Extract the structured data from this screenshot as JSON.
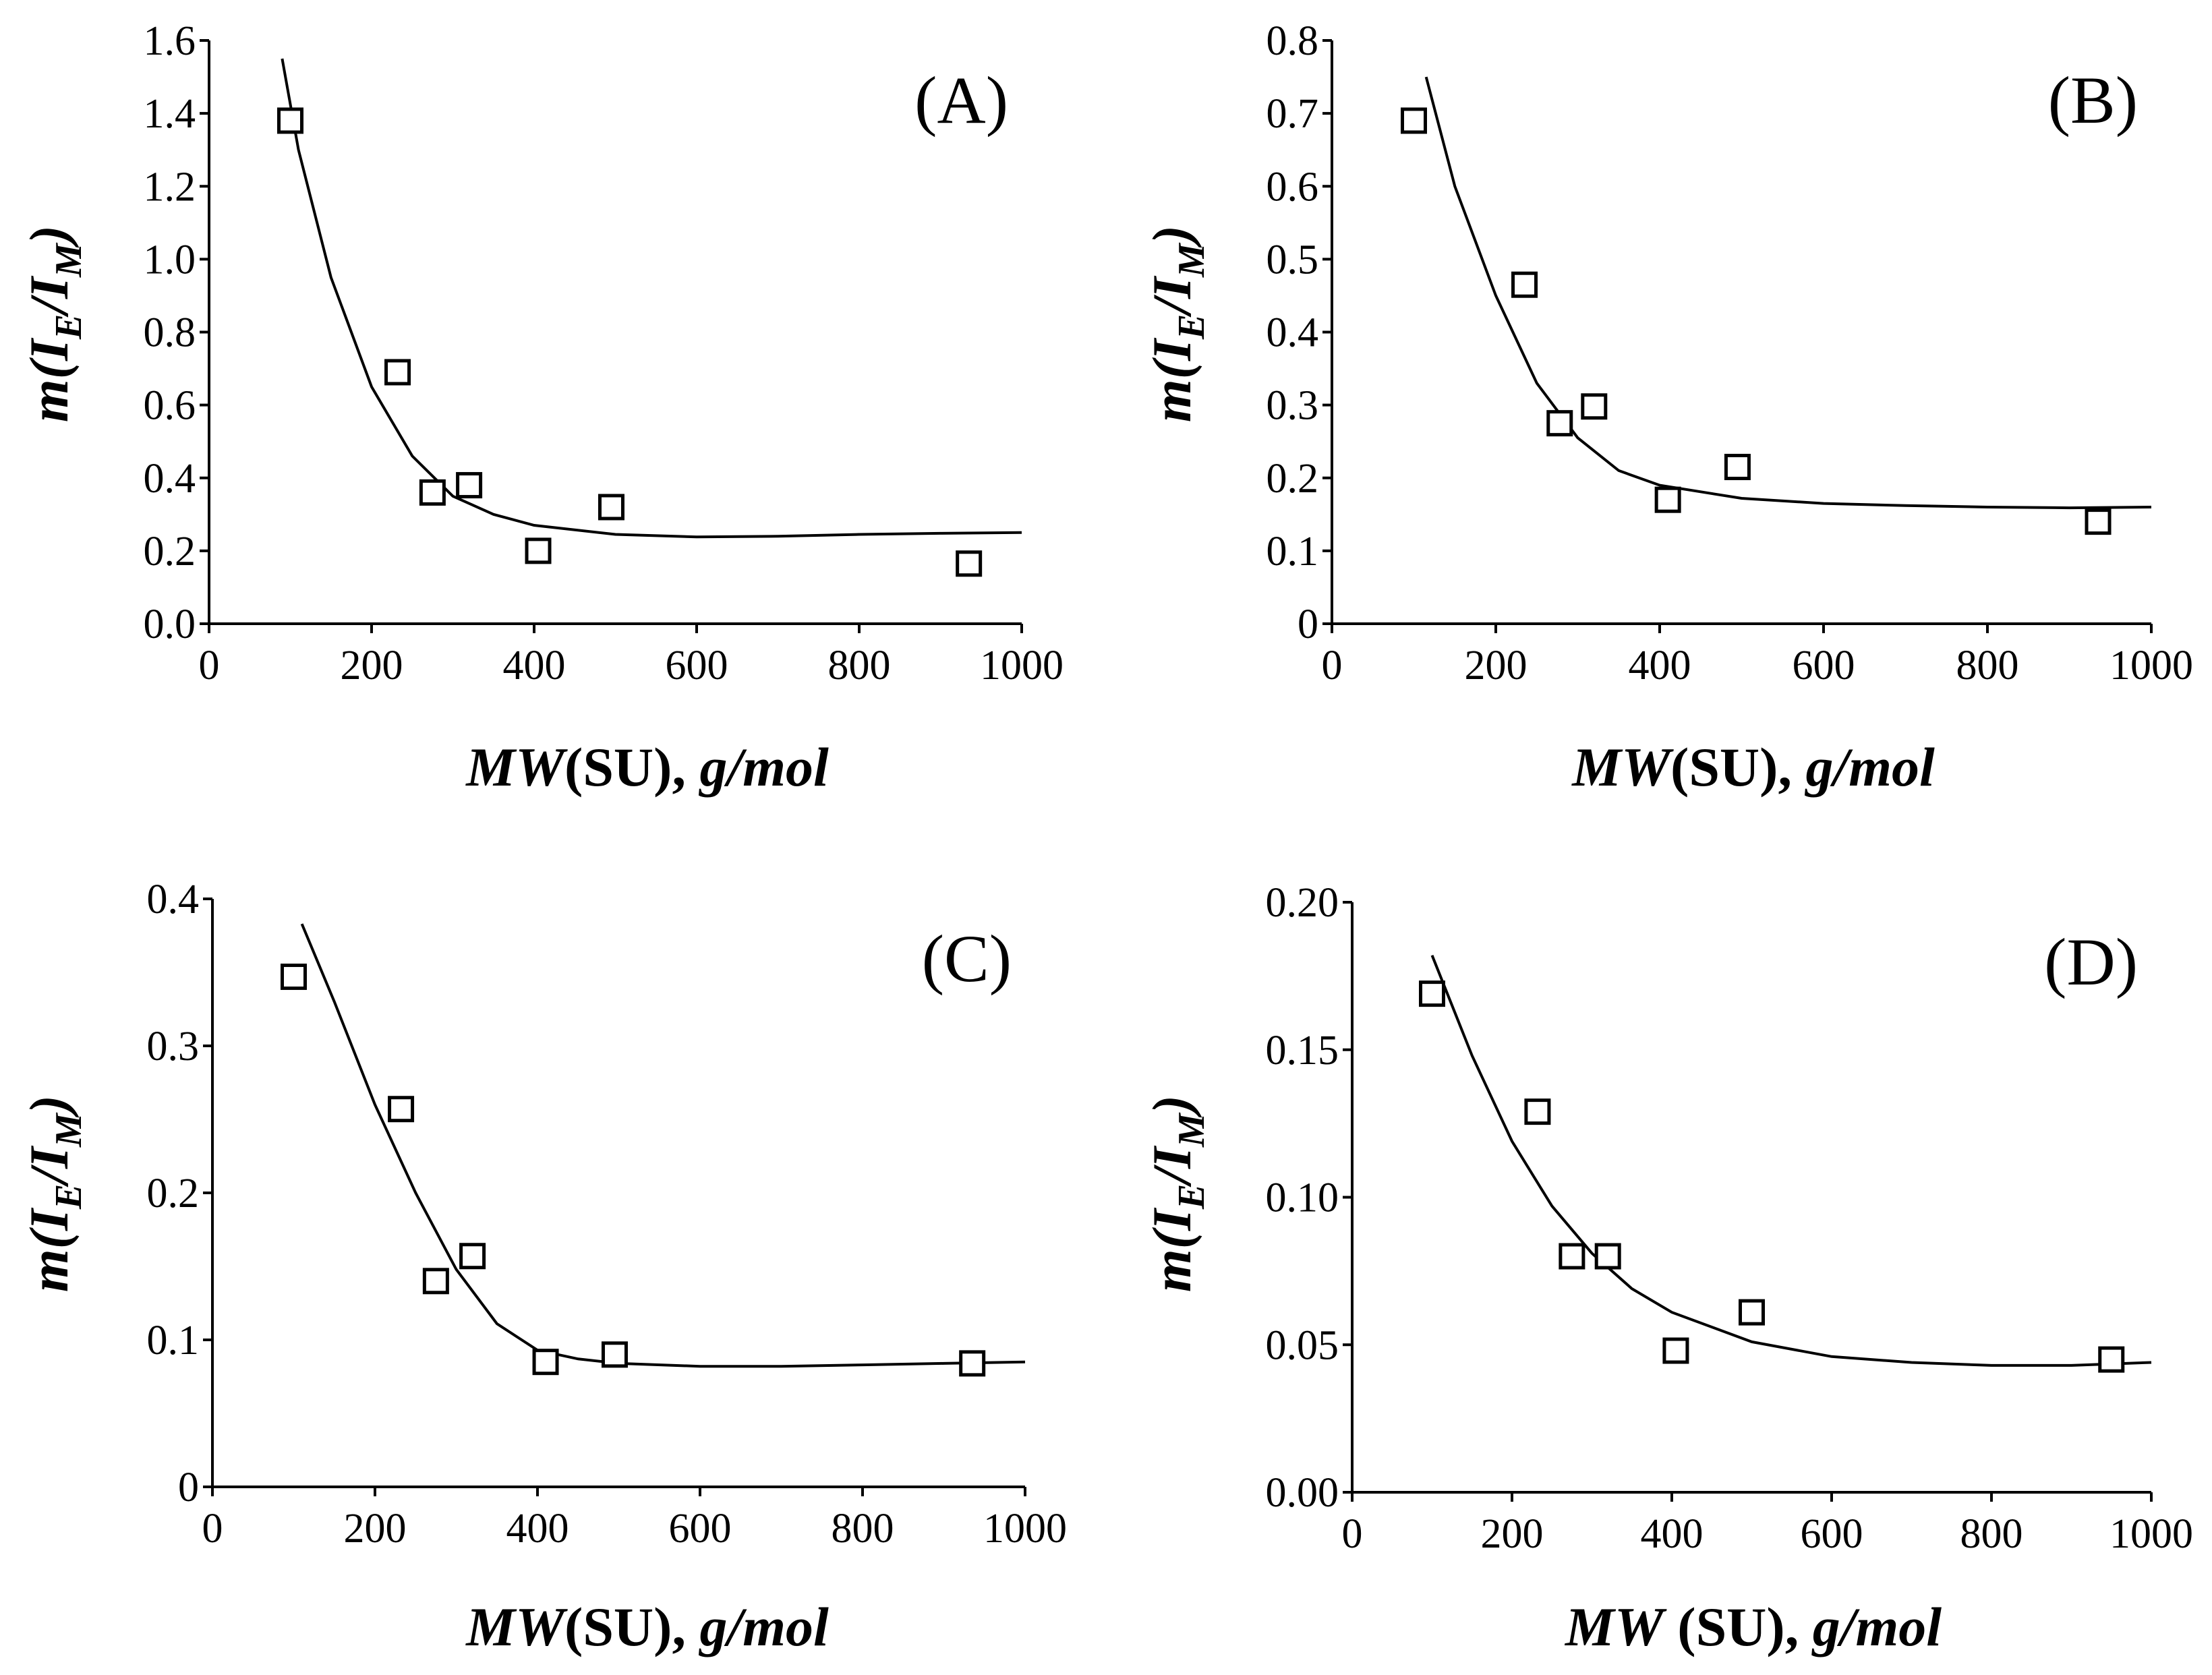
{
  "figure": {
    "background": "#ffffff",
    "ink": "#000000"
  },
  "chart_data": [
    {
      "type": "scatter",
      "panel_label": "(A)",
      "xlabel": {
        "italic": "MW",
        "normal": "(SU),",
        "italic2": "g/mol"
      },
      "ylabel": {
        "m": "m(I",
        "sub1": "E",
        "mid": "/I",
        "sub2": "M",
        "end": ")"
      },
      "xlim": [
        0,
        1000
      ],
      "ylim": [
        0,
        1.6
      ],
      "xticks": [
        "0",
        "200",
        "400",
        "600",
        "800",
        "1000"
      ],
      "yticks": [
        "0.0",
        "0.2",
        "0.4",
        "0.6",
        "0.8",
        "1.0",
        "1.2",
        "1.4",
        "1.6"
      ],
      "points": {
        "x": [
          100,
          232,
          275,
          320,
          405,
          495,
          935
        ],
        "y": [
          1.38,
          0.69,
          0.36,
          0.38,
          0.2,
          0.32,
          0.165
        ]
      },
      "fit_curve": {
        "x": [
          90,
          110,
          150,
          200,
          250,
          300,
          350,
          400,
          500,
          600,
          700,
          800,
          900,
          1000
        ],
        "y": [
          1.55,
          1.3,
          0.95,
          0.65,
          0.46,
          0.35,
          0.3,
          0.27,
          0.245,
          0.238,
          0.24,
          0.245,
          0.248,
          0.25
        ]
      },
      "legend": "none",
      "grid": false
    },
    {
      "type": "scatter",
      "panel_label": "(B)",
      "xlabel": {
        "italic": "MW",
        "normal": "(SU),",
        "italic2": "g/mol"
      },
      "ylabel": {
        "m": "m(I",
        "sub1": "E",
        "mid": "/I",
        "sub2": "M",
        "end": ")"
      },
      "xlim": [
        0,
        1000
      ],
      "ylim": [
        0,
        0.8
      ],
      "xticks": [
        "0",
        "200",
        "400",
        "600",
        "800",
        "1000"
      ],
      "yticks": [
        "0",
        "0.1",
        "0.2",
        "0.3",
        "0.4",
        "0.5",
        "0.6",
        "0.7",
        "0.8"
      ],
      "points": {
        "x": [
          100,
          235,
          278,
          320,
          410,
          495,
          935
        ],
        "y": [
          0.69,
          0.465,
          0.275,
          0.298,
          0.17,
          0.215,
          0.14
        ]
      },
      "fit_curve": {
        "x": [
          115,
          150,
          200,
          250,
          300,
          350,
          400,
          500,
          600,
          700,
          800,
          900,
          1000
        ],
        "y": [
          0.75,
          0.6,
          0.45,
          0.33,
          0.255,
          0.21,
          0.19,
          0.172,
          0.165,
          0.162,
          0.16,
          0.159,
          0.16
        ]
      },
      "legend": "none",
      "grid": false
    },
    {
      "type": "scatter",
      "panel_label": "(C)",
      "xlabel": {
        "italic": "MW",
        "normal": "(SU),",
        "italic2": "g/mol"
      },
      "ylabel": {
        "m": "m(I",
        "sub1": "E",
        "mid": "/I",
        "sub2": "M",
        "end": ")"
      },
      "xlim": [
        0,
        1000
      ],
      "ylim": [
        0,
        0.4
      ],
      "xticks": [
        "0",
        "200",
        "400",
        "600",
        "800",
        "1000"
      ],
      "yticks": [
        "0",
        "0.1",
        "0.2",
        "0.3",
        "0.4"
      ],
      "points": {
        "x": [
          100,
          232,
          275,
          320,
          410,
          495,
          935
        ],
        "y": [
          0.347,
          0.257,
          0.14,
          0.157,
          0.085,
          0.09,
          0.084
        ]
      },
      "fit_curve": {
        "x": [
          110,
          150,
          200,
          250,
          300,
          350,
          400,
          450,
          500,
          600,
          700,
          800,
          900,
          1000
        ],
        "y": [
          0.383,
          0.33,
          0.26,
          0.2,
          0.148,
          0.111,
          0.093,
          0.087,
          0.084,
          0.082,
          0.082,
          0.083,
          0.084,
          0.085
        ]
      },
      "legend": "none",
      "grid": false
    },
    {
      "type": "scatter",
      "panel_label": "(D)",
      "xlabel": {
        "italic": "MW",
        "normal": " (SU),",
        "italic2": "g/mol"
      },
      "ylabel": {
        "m": "m(I",
        "sub1": "E",
        "mid": "/I",
        "sub2": "M",
        "end": ")"
      },
      "xlim": [
        0,
        1000
      ],
      "ylim": [
        0,
        0.2
      ],
      "xticks": [
        "0",
        "200",
        "400",
        "600",
        "800",
        "1000"
      ],
      "yticks": [
        "0.00",
        "0.05",
        "0.10",
        "0.15",
        "0.20"
      ],
      "points": {
        "x": [
          100,
          232,
          275,
          320,
          405,
          500,
          950
        ],
        "y": [
          0.169,
          0.129,
          0.08,
          0.08,
          0.048,
          0.061,
          0.045
        ]
      },
      "fit_curve": {
        "x": [
          100,
          150,
          200,
          250,
          300,
          350,
          400,
          500,
          600,
          700,
          800,
          900,
          1000
        ],
        "y": [
          0.182,
          0.148,
          0.119,
          0.097,
          0.081,
          0.069,
          0.061,
          0.051,
          0.046,
          0.044,
          0.043,
          0.043,
          0.044
        ]
      },
      "legend": "none",
      "grid": false
    }
  ]
}
